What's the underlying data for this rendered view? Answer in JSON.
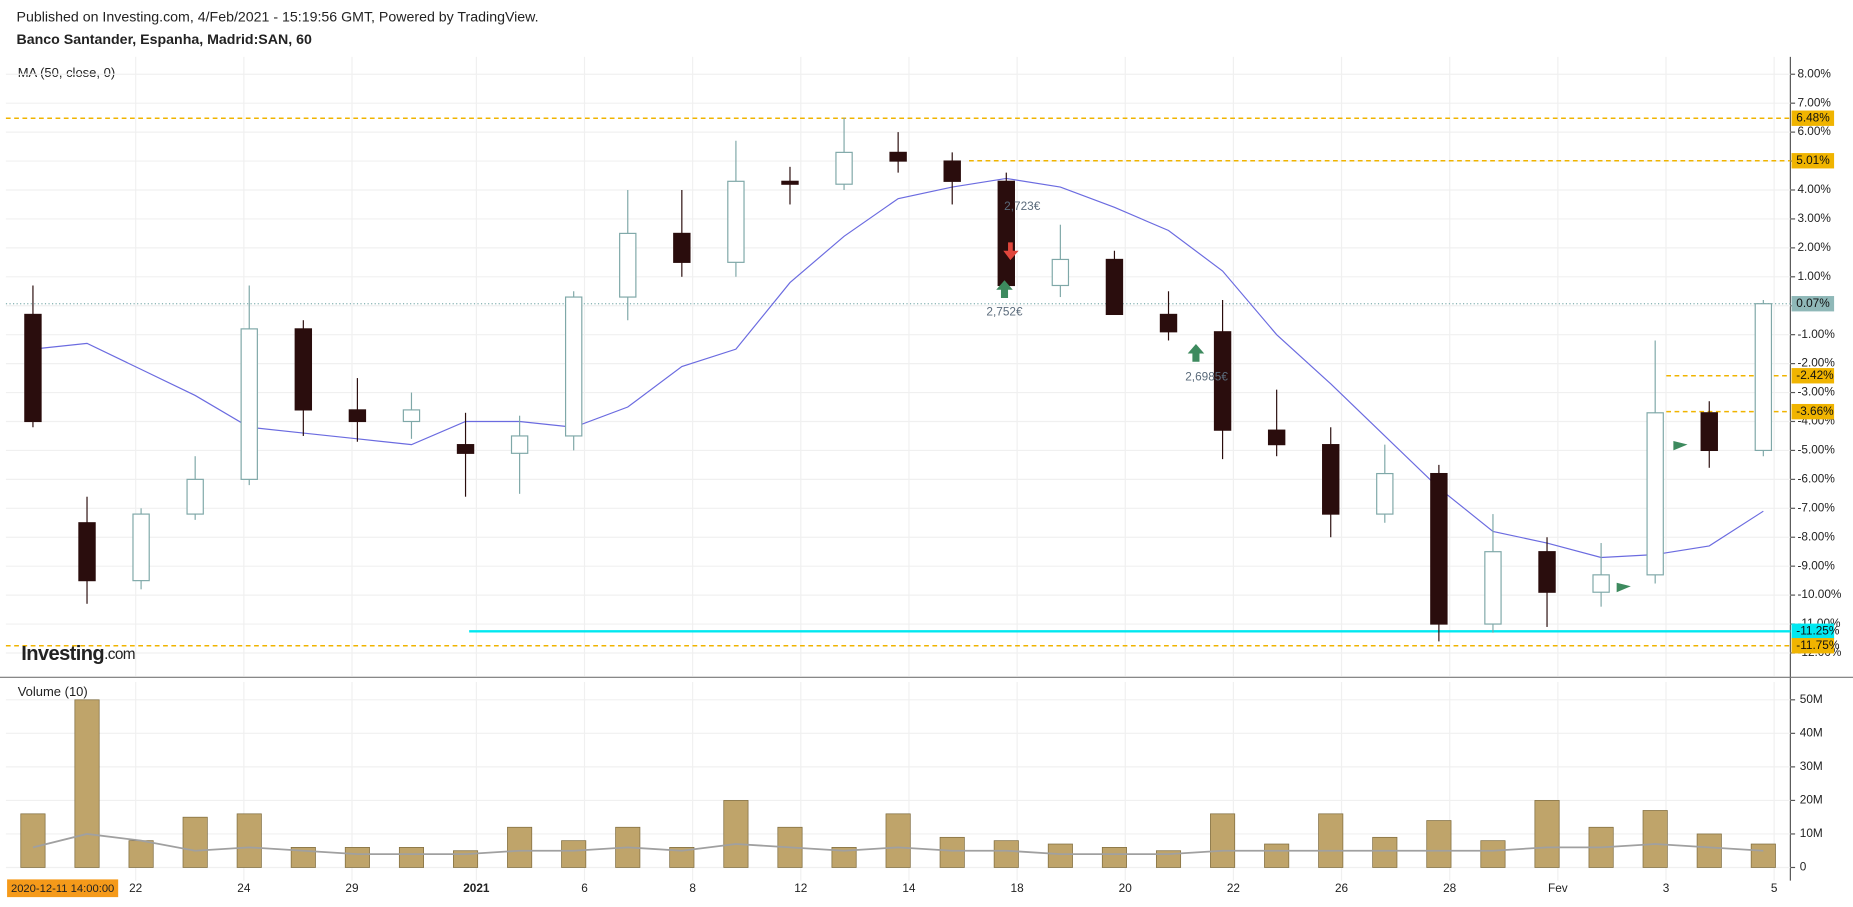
{
  "chart_data": {
    "type": "candlestick",
    "title": "Published on Investing.com, 4/Feb/2021 - 15:19:56 GMT, Powered by TradingView.",
    "subtitle": "Banco Santander, Espanha, Madrid:SAN, 60",
    "indicator_label": "MA (50, close, 0)",
    "volume_label": "Volume (10)",
    "logo": "Investing",
    "logo_suffix": ".com",
    "cursor_label": "2020-12-11 14:00:00",
    "x": [
      0.5,
      1.5,
      2.5,
      3.5,
      4.5,
      5.5,
      6.5,
      7.5,
      8.5,
      9.5,
      10.5,
      11.5,
      12.5,
      13.5,
      14.5,
      15.5,
      16.5,
      17.5,
      18.5,
      19.5,
      20.5,
      21.5,
      22.5,
      23.5,
      24.5,
      25.5,
      26.5,
      27.5,
      28.5,
      29.5,
      30.5,
      31.5,
      32.5
    ],
    "open": [
      -0.3,
      -7.5,
      -9.5,
      -7.2,
      -6.0,
      -0.8,
      -3.6,
      -4.0,
      -4.8,
      -5.1,
      -4.5,
      0.3,
      2.5,
      1.5,
      4.3,
      4.2,
      5.3,
      5.0,
      4.3,
      0.7,
      1.6,
      -0.3,
      -0.9,
      -4.3,
      -4.8,
      -7.2,
      -5.8,
      -11.0,
      -8.5,
      -9.9,
      -9.3,
      -3.7,
      -5.0
    ],
    "high": [
      0.7,
      -6.6,
      -7.0,
      -5.2,
      0.7,
      -0.5,
      -2.5,
      -3.0,
      -3.7,
      -3.8,
      0.5,
      4.0,
      4.0,
      5.7,
      4.8,
      6.5,
      6.0,
      5.3,
      4.6,
      2.8,
      1.9,
      0.5,
      0.2,
      -2.9,
      -4.2,
      -4.8,
      -5.5,
      -7.2,
      -8.0,
      -8.2,
      -1.2,
      -3.3,
      0.2
    ],
    "low": [
      -4.2,
      -10.3,
      -9.8,
      -7.4,
      -6.2,
      -4.5,
      -4.7,
      -4.6,
      -6.6,
      -6.5,
      -5.0,
      -0.5,
      1.0,
      1.0,
      3.5,
      4.0,
      4.6,
      3.5,
      0.3,
      0.3,
      -0.2,
      -1.2,
      -5.3,
      -5.2,
      -8.0,
      -7.5,
      -11.6,
      -11.3,
      -11.1,
      -10.4,
      -9.6,
      -5.6,
      -5.2
    ],
    "close": [
      -4.0,
      -9.5,
      -7.2,
      -6.0,
      -0.8,
      -3.6,
      -4.0,
      -3.6,
      -5.1,
      -4.5,
      0.3,
      2.5,
      1.5,
      4.3,
      4.2,
      5.3,
      5.0,
      4.3,
      0.7,
      1.6,
      -0.3,
      -0.9,
      -4.3,
      -4.8,
      -7.2,
      -5.8,
      -11.0,
      -8.5,
      -9.9,
      -9.3,
      -3.7,
      -5.0,
      0.07
    ],
    "up_color": "#ffffff",
    "up_border": "#7fa8a8",
    "down_color": "#2a0d0d",
    "ma": {
      "color": "#6b6be0",
      "values": [
        -1.5,
        -1.3,
        -2.2,
        -3.1,
        -4.2,
        -4.4,
        -4.6,
        -4.8,
        -4.0,
        -4.0,
        -4.2,
        -3.5,
        -2.1,
        -1.5,
        0.8,
        2.4,
        3.7,
        4.1,
        4.4,
        4.1,
        3.4,
        2.6,
        1.2,
        -1.0,
        -2.7,
        -4.5,
        -6.3,
        -7.8,
        -8.2,
        -8.7,
        -8.6,
        -8.3,
        -7.1
      ]
    },
    "xlim": [
      0,
      33
    ],
    "xticks": [
      {
        "value": 2.4,
        "label": "22"
      },
      {
        "value": 4.4,
        "label": "24"
      },
      {
        "value": 6.4,
        "label": "29"
      },
      {
        "value": 8.7,
        "label": "2021"
      },
      {
        "value": 10.7,
        "label": "6"
      },
      {
        "value": 12.7,
        "label": "8"
      },
      {
        "value": 14.7,
        "label": "12"
      },
      {
        "value": 16.7,
        "label": "14"
      },
      {
        "value": 18.7,
        "label": "18"
      },
      {
        "value": 20.7,
        "label": "20"
      },
      {
        "value": 22.7,
        "label": "22"
      },
      {
        "value": 24.7,
        "label": "26"
      },
      {
        "value": 26.7,
        "label": "28"
      },
      {
        "value": 28.7,
        "label": "Fev"
      },
      {
        "value": 30.7,
        "label": "3"
      },
      {
        "value": 32.7,
        "label": "5"
      }
    ],
    "ylim": [
      -12.8,
      8.6
    ],
    "yticks": [
      {
        "value": 8,
        "label": "8.00%"
      },
      {
        "value": 7,
        "label": "7.00%"
      },
      {
        "value": 6,
        "label": "6.00%"
      },
      {
        "value": 5,
        "label": "5.00%"
      },
      {
        "value": 4,
        "label": "4.00%"
      },
      {
        "value": 3,
        "label": "3.00%"
      },
      {
        "value": 2,
        "label": "2.00%"
      },
      {
        "value": 1,
        "label": "1.00%"
      },
      {
        "value": 0,
        "label": "0.00%"
      },
      {
        "value": -1,
        "label": "-1.00%"
      },
      {
        "value": -2,
        "label": "-2.00%"
      },
      {
        "value": -3,
        "label": "-3.00%"
      },
      {
        "value": -4,
        "label": "-4.00%"
      },
      {
        "value": -5,
        "label": "-5.00%"
      },
      {
        "value": -6,
        "label": "-6.00%"
      },
      {
        "value": -7,
        "label": "-7.00%"
      },
      {
        "value": -8,
        "label": "-8.00%"
      },
      {
        "value": -9,
        "label": "-9.00%"
      },
      {
        "value": -10,
        "label": "-10.00%"
      },
      {
        "value": -11,
        "label": "-11.00%"
      },
      {
        "value": -12,
        "label": "-12.00%"
      }
    ],
    "grid": true,
    "levels": [
      {
        "value": 6.48,
        "label": "6.48%",
        "color": "#f0b400",
        "style": "dashed"
      },
      {
        "value": 5.01,
        "label": "5.01%",
        "color": "#f0b400",
        "style": "dashed"
      },
      {
        "value": 0.07,
        "label": "0.07%",
        "color": "#8fb8b8",
        "style": "dotted"
      },
      {
        "value": -2.42,
        "label": "-2.42%",
        "color": "#f0b400",
        "style": "dashed"
      },
      {
        "value": -3.66,
        "label": "-3.66%",
        "color": "#f0b400",
        "style": "dashed"
      },
      {
        "value": -11.25,
        "label": "-11.25%",
        "color": "#00e8f0",
        "style": "solid"
      },
      {
        "value": -11.75,
        "label": "-11.75%",
        "color": "#f0b400",
        "style": "dashed"
      }
    ],
    "annotations": [
      "2,723€",
      "2,752€",
      "2,6985€"
    ],
    "volume": {
      "color": "#bfa46a",
      "border": "#7d6a3c",
      "values": [
        16,
        50,
        8,
        15,
        16,
        6,
        6,
        6,
        5,
        12,
        8,
        12,
        6,
        20,
        12,
        6,
        16,
        9,
        8,
        7,
        6,
        5,
        16,
        7,
        16,
        9,
        14,
        8,
        20,
        12,
        17,
        10,
        7
      ],
      "ma_color": "#a0a0a0",
      "ma_values": [
        6,
        10,
        8,
        5,
        6,
        5,
        4,
        4,
        4,
        5,
        5,
        6,
        5,
        7,
        6,
        5,
        6,
        5,
        5,
        4,
        4,
        4,
        5,
        5,
        5,
        5,
        5,
        5,
        6,
        6,
        7,
        6,
        5
      ],
      "ylim": [
        -3.9,
        55.3
      ],
      "yticks": [
        0,
        {
          "value": 10,
          "label": "10M"
        },
        {
          "value": 20,
          "label": "20M"
        },
        {
          "value": 30,
          "label": "30M"
        },
        {
          "value": 40,
          "label": "40M"
        },
        {
          "value": 50,
          "label": "50M"
        }
      ]
    }
  }
}
